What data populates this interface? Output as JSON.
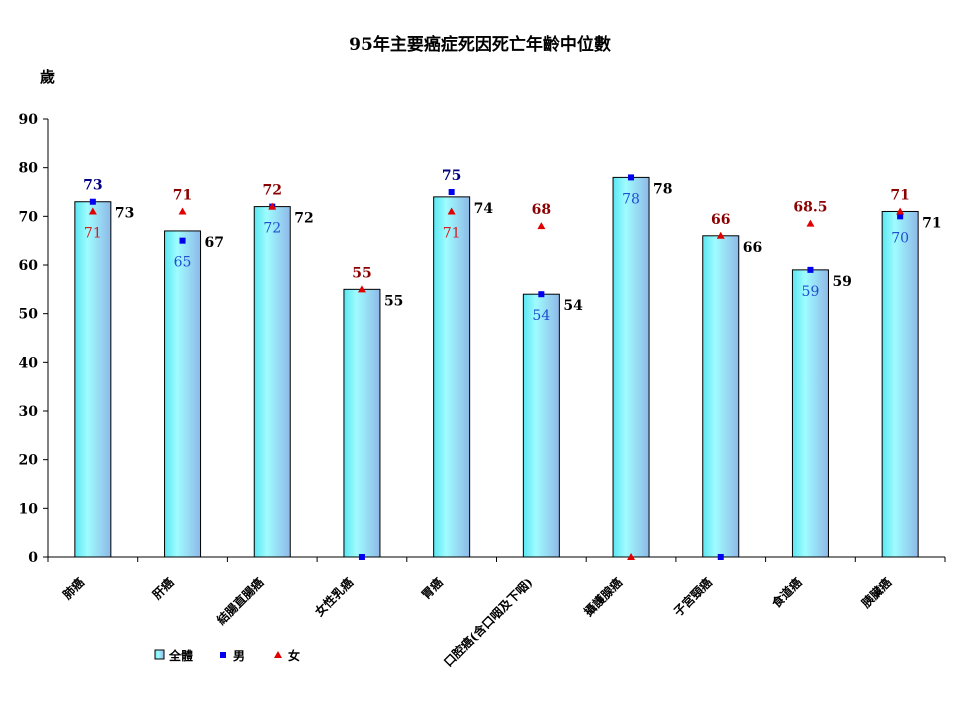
{
  "chart_data": {
    "type": "bar",
    "title": "95年主要癌症死因死亡年齡中位數",
    "ylabel": "歲",
    "ylim": [
      0,
      90
    ],
    "yticks": [
      0,
      10,
      20,
      30,
      40,
      50,
      60,
      70,
      80,
      90
    ],
    "grid": false,
    "legend_position": "bottom-left",
    "categories": [
      "肺癌",
      "肝癌",
      "結腸直腸癌",
      "女性乳癌",
      "胃癌",
      "口腔癌(含口咽及下咽)",
      "攝護腺癌",
      "子宮頸癌",
      "食道癌",
      "胰臟癌"
    ],
    "series": [
      {
        "name": "全體",
        "type": "bar",
        "values": [
          73,
          67,
          72,
          55,
          74,
          54,
          78,
          66,
          59,
          71
        ],
        "labels": [
          "73",
          "67",
          "72",
          "55",
          "74",
          "54",
          "78",
          "66",
          "59",
          "71"
        ]
      },
      {
        "name": "男",
        "type": "marker",
        "values": [
          73,
          65,
          72,
          0,
          75,
          54,
          78,
          0,
          59,
          70
        ],
        "labels": [
          "73",
          "65",
          "72",
          "",
          "75",
          "54",
          "78",
          "",
          "59",
          "70"
        ]
      },
      {
        "name": "女",
        "type": "marker",
        "values": [
          71,
          71,
          72,
          55,
          71,
          68,
          0,
          66,
          68.5,
          71
        ],
        "labels": [
          "71",
          "71",
          "72",
          "55",
          "71",
          "68",
          "",
          "66",
          "68.5",
          "71"
        ]
      }
    ],
    "colors": {
      "bar_light": "#9ffcff",
      "bar_dark": "#5cc8e6",
      "bar_edge": "#000000",
      "male": "#0000ee",
      "female": "#e00000"
    }
  }
}
